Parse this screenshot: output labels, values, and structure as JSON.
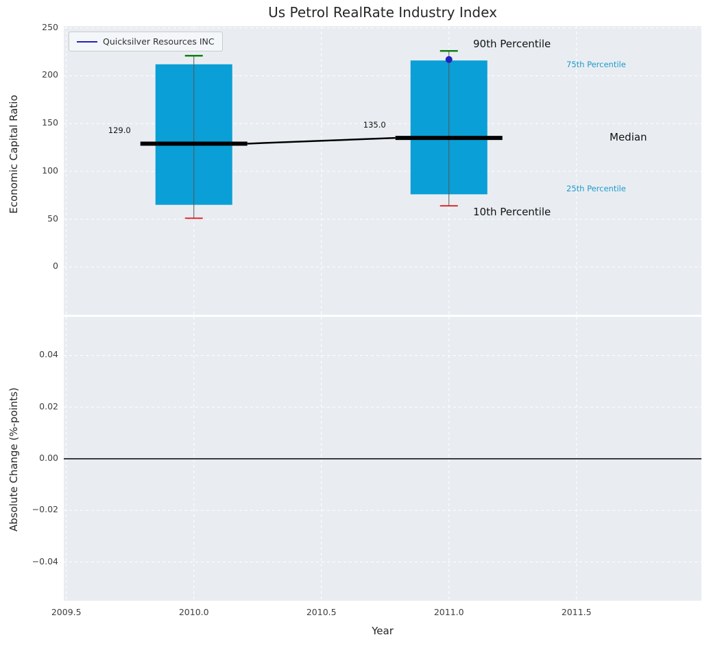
{
  "title": "Us Petrol RealRate Industry Index",
  "legend": {
    "label": "Quicksilver Resources INC"
  },
  "axes": {
    "top_ylabel": "Economic Capital Ratio",
    "bottom_ylabel": "Absolute Change (%-points)",
    "xlabel": "Year"
  },
  "annotations": {
    "p90_label": "90th Percentile",
    "p10_label": "10th Percentile",
    "p75_label": "75th Percentile",
    "p25_label": "25th Percentile",
    "median_label": "Median"
  },
  "colors": {
    "box_fill": "#0a9fd6",
    "p90_cap": "#0f7f0f",
    "p10_cap": "#e02828",
    "median_line": "#000000",
    "connector_line": "#000000",
    "company_point": "#2121bd",
    "percentile_text": "#1f9ac9",
    "plot_bg": "#e9edf2",
    "grid": "#ffffff",
    "zero_line": "#000000"
  },
  "chart_data": [
    {
      "type": "boxplot",
      "title": "Us Petrol RealRate Industry Index",
      "ylabel": "Economic Capital Ratio",
      "xlim": [
        2009.49,
        2011.99
      ],
      "ylim": [
        -50,
        252
      ],
      "xtick_values": [
        2009.5,
        2010.0,
        2010.5,
        2011.0,
        2011.5
      ],
      "ytick_values": [
        0,
        50,
        100,
        150,
        200,
        250
      ],
      "yticks": [
        "0",
        "50",
        "100",
        "150",
        "200",
        "250"
      ],
      "grid": true,
      "legend_position": "upper left",
      "boxes": [
        {
          "x": 2010,
          "p10": 51,
          "p25": 65,
          "median": 129.0,
          "p75": 212,
          "p90": 221,
          "median_label": "129.0"
        },
        {
          "x": 2011,
          "p10": 64,
          "p25": 76,
          "median": 135.0,
          "p75": 216,
          "p90": 226,
          "median_label": "135.0"
        }
      ],
      "company_series": {
        "name": "Quicksilver Resources INC",
        "points": [
          {
            "x": 2011,
            "y": 217
          }
        ]
      }
    },
    {
      "type": "line",
      "ylabel": "Absolute Change (%-points)",
      "xlabel": "Year",
      "xlim": [
        2009.49,
        2011.99
      ],
      "ylim": [
        -0.055,
        0.055
      ],
      "xtick_values": [
        2009.5,
        2010.0,
        2010.5,
        2011.0,
        2011.5
      ],
      "xticks": [
        "2009.5",
        "2010.0",
        "2010.5",
        "2011.0",
        "2011.5"
      ],
      "ytick_values": [
        -0.04,
        -0.02,
        0.0,
        0.02,
        0.04
      ],
      "yticks": [
        "−0.04",
        "−0.02",
        "0.00",
        "0.02",
        "0.04"
      ],
      "zero_line": 0.0,
      "grid": true,
      "series": []
    }
  ]
}
